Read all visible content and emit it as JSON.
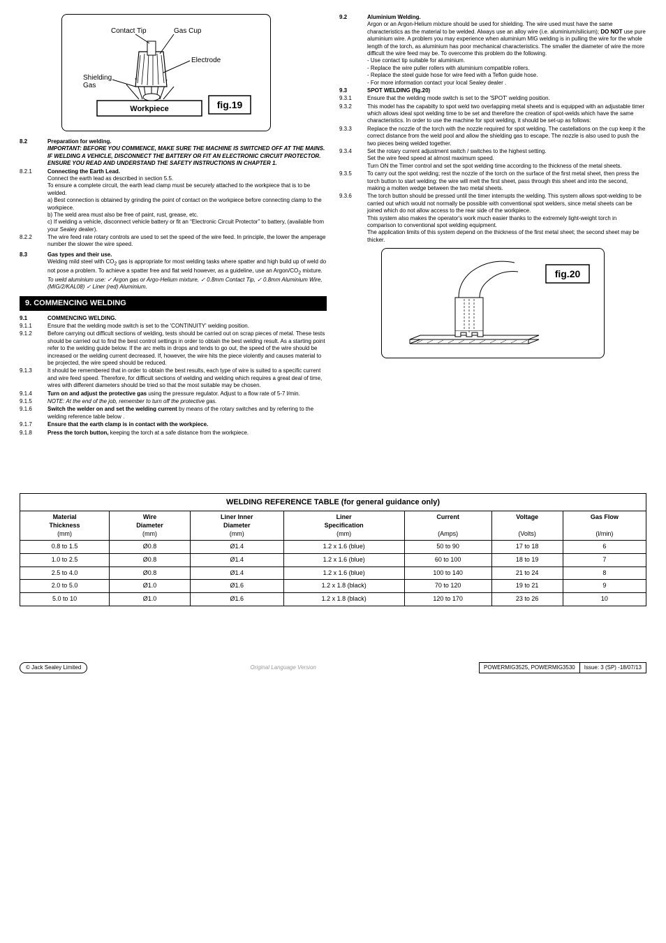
{
  "fig19": {
    "label": "fig.19",
    "contactTip": "Contact Tip",
    "gasCup": "Gas Cup",
    "electrode": "Electrode",
    "shieldingGas": "Shielding\nGas",
    "workpiece": "Workpiece"
  },
  "fig20": {
    "label": "fig.20"
  },
  "left": {
    "s82": {
      "num": "8.2",
      "title": "Preparation for welding.",
      "important": "IMPORTANT: BEFORE YOU COMMENCE, MAKE SURE THE MACHINE IS SWITCHED OFF AT THE MAINS. IF WELDING A VEHICLE, DISCONNECT THE BATTERY OR FIT AN ELECTRONIC CIRCUIT PROTECTOR. ENSURE YOU READ AND UNDERSTAND THE SAFETY INSTRUCTIONS IN CHAPTER 1."
    },
    "s821": {
      "num": "8.2.1",
      "title": "Connecting the Earth Lead.",
      "l1": "Connect the earth lead as described in section 5.5.",
      "l2": "To ensure a complete circuit, the earth lead clamp must be securely attached to the workpiece that is to be welded.",
      "la": "a) Best connection is obtained by grinding the point of contact on the workpiece before connecting clamp to the workpiece.",
      "lb": "b) The weld area must also be free of paint, rust, grease, etc.",
      "lc": "c) If welding a vehicle, disconnect vehicle battery or fit an “Electronic Circuit Protector” to battery, (available from your Sealey dealer)."
    },
    "s822": {
      "num": "8.2.2",
      "body": "The wire feed rate rotary controls are used to set the speed of the wire feed. In principle, the lower the amperage number the slower the wire speed."
    },
    "s83": {
      "num": "8.3",
      "title": "Gas types and their use.",
      "p1a": "Welding mild steel with CO",
      "p1b": " gas is appropriate for most welding tasks where spatter and high build up of weld do not pose a problem. To achieve a spatter free and flat weld however, as a guideline, use an Argon/CO",
      "p1c": " mixture. ",
      "ital": "To weld aluminium use:  ✓ Argon gas or Argo-Helium mixture,  ✓ 0.8mm Contact Tip,  ✓ 0.8mm Aluminium Wire, (MIG/2/KAL08) ✓ Liner (red) Aluminium."
    },
    "bar9": "9.    COMMENCING WELDING",
    "s91": {
      "num": "9.1",
      "title": "COMMENCING WELDING."
    },
    "s911": {
      "num": "9.1.1",
      "body": "Ensure that the welding mode switch is set to the 'CONTINUITY' welding position."
    },
    "s912": {
      "num": "9.1.2",
      "body": "Before carrying out difficult sections of welding, tests should be carried out on scrap pieces of metal. These tests should be carried out to find the best control settings in order to obtain the best welding result. As a starting point refer to the welding guide below. If the arc melts in drops and tends to go out, the speed of the wire should be increased or the welding current decreased. If, however, the wire hits the piece violently and causes material to be projected, the wire speed should be reduced."
    },
    "s913": {
      "num": "9.1.3",
      "body": "It should be remembered that in order to obtain the best results, each type of wire is suited to a specific current and wire feed speed. Therefore, for difficult sections of welding and welding which requires a great deal of time, wires with different diameters should be tried so that the most suitable may be chosen."
    },
    "s914": {
      "num": "9.1.4",
      "bold": "Turn on and adjust the protective gas",
      "rest": " using the pressure regulator. Adjust to a flow rate of 5-7 l/min."
    },
    "s915": {
      "num": "9.1.5",
      "ital": "NOTE: At the end of the job, remember to turn off the protective gas."
    },
    "s916": {
      "num": "9.1.6",
      "bold": "Switch the welder on and set the welding current",
      "rest": " by means of the rotary switches and by referring to the welding reference table below ."
    },
    "s917": {
      "num": "9.1.7",
      "bold": "Ensure that the earth clamp is in contact with the workpiece."
    },
    "s918": {
      "num": "9.1.8",
      "bold": "Press the torch button,",
      "rest": " keeping the torch at a safe distance from the workpiece."
    }
  },
  "right": {
    "s92": {
      "num": "9.2",
      "title": "Aluminium Welding.",
      "p1": "Argon or an Argon-Helium mixture should be used for shielding. The wire used must have the same characteristics as the material to be welded. Always use an alloy wire (i.e. aluminium/silicium); ",
      "p1b": "DO NOT",
      "p1c": " use pure aluminium wire.  A problem you may experience when aluminium MIG welding is in pulling the wire for the whole length of the torch, as aluminium has poor mechanical characteristics. The smaller the diameter of wire the more difficult the wire feed may be. To overcome this problem do the following.",
      "b1": "- Use contact tip suitable for aluminium.",
      "b2": "- Replace the wire puller rollers with aluminium compatible rollers.",
      "b3": "- Replace the steel guide hose for wire feed with a Teflon guide hose.",
      "b4": "- For more information contact your local Sealey dealer ."
    },
    "s93": {
      "num": "9.3",
      "title": "SPOT WELDING (fig.20)"
    },
    "s931": {
      "num": "9.3.1",
      "body": "Ensure that the welding mode switch is set to the 'SPOT' welding position."
    },
    "s932": {
      "num": "9.3.2",
      "body": "This model has the capabilty to spot weld two overlapping metal sheets and is equipped with an adjustable timer which allows ideal spot welding time to be set and therefore the creation of spot-welds which have the same characteristics. In order to use the machine for spot welding, it should be set-up as follows:"
    },
    "s933": {
      "num": "9.3.3",
      "body": "Replace the nozzle of the torch with the nozzle required for spot welding. The castellations on the cup keep it the correct distance from the weld pool and allow the shielding gas to escape. The nozzle is also used to push the two pieces being welded together."
    },
    "s934": {
      "num": "9.3.4",
      "body": "Set the rotary current adjustment switch / switches to the highest setting.",
      "l2": "Set the wire feed speed at almost maximum speed.",
      "l3": "Turn ON the Timer control and set the spot welding time according to the thickness of the metal sheets."
    },
    "s935": {
      "num": "9.3.5",
      "body": "To carry out the spot welding; rest the nozzle of the torch on the surface of the first metal sheet, then press the torch button to start welding: the wire will melt the first sheet, pass through this sheet and into the second, making a molten wedge between the two metal sheets."
    },
    "s936": {
      "num": "9.3.6",
      "body": "The torch button should be pressed until the timer interrupts the welding. This system allows spot-welding to be carried out which would not normally be possible with conventional spot welders, since metal sheets can be joined which do not allow access to the rear side of the workpiece.",
      "l2": "This system also makes the operator's work much easier thanks to the extremely light-weight torch in comparison to conventional spot welding equipment.",
      "l3": "The application limits of this system depend on the thickness of the first metal sheet; the second sheet may be thicker."
    }
  },
  "table": {
    "title": "WELDING REFERENCE TABLE (for general guidance only)",
    "headers": {
      "c1a": "Material",
      "c1b": "Thickness",
      "c1c": "(mm)",
      "c2a": "Wire",
      "c2b": "Diameter",
      "c2c": "(mm)",
      "c3a": "Liner Inner",
      "c3b": "Diameter",
      "c3c": "(mm)",
      "c4a": "Liner",
      "c4b": "Specification",
      "c4c": "(mm)",
      "c5a": "Current",
      "c5c": "(Amps)",
      "c6a": "Voltage",
      "c6c": "(Volts)",
      "c7a": "Gas Flow",
      "c7c": "(l/min)"
    },
    "rows": [
      {
        "c1": "0.8 to 1.5",
        "c2": "Ø0.8",
        "c3": "Ø1.4",
        "c4": "1.2 x 1.6 (blue)",
        "c5": "50 to 90",
        "c6": "17 to 18",
        "c7": "6"
      },
      {
        "c1": "1.0 to 2.5",
        "c2": "Ø0.8",
        "c3": "Ø1.4",
        "c4": "1.2 x 1.6 (blue)",
        "c5": "60 to 100",
        "c6": "18 to 19",
        "c7": "7"
      },
      {
        "c1": "2.5 to 4.0",
        "c2": "Ø0.8",
        "c3": "Ø1.4",
        "c4": "1.2 x 1.6 (blue)",
        "c5": "100 to 140",
        "c6": "21 to 24",
        "c7": "8"
      },
      {
        "c1": "2.0 to 5.0",
        "c2": "Ø1.0",
        "c3": "Ø1.6",
        "c4": "1.2 x 1.8 (black)",
        "c5": "70 to 120",
        "c6": "19 to 21",
        "c7": "9"
      },
      {
        "c1": "5.0 to 10",
        "c2": "Ø1.0",
        "c3": "Ø1.6",
        "c4": "1.2 x 1.8 (black)",
        "c5": "120 to 170",
        "c6": "23 to 26",
        "c7": "10"
      }
    ]
  },
  "footer": {
    "left": "© Jack Sealey Limited",
    "mid": "Original Language Version",
    "r1": "POWERMIG3525, POWERMIG3530",
    "r2": "Issue: 3 (SP) -18/07/13"
  }
}
